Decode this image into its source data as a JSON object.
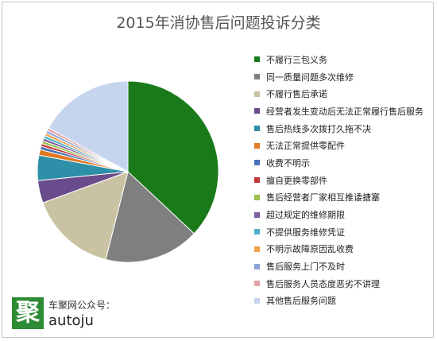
{
  "chart_data": {
    "type": "pie",
    "title": "2015年消协售后问题投诉分类",
    "slices": [
      {
        "label": "不履行三包义务",
        "value": 37.0,
        "color": "#1a7a1a"
      },
      {
        "label": "同一质量问题多次维修",
        "value": 17.0,
        "color": "#7f7f7f"
      },
      {
        "label": "不履行售后承诺",
        "value": 15.5,
        "color": "#c9c3a3"
      },
      {
        "label": "经营者发生变动后无法正常履行售后服务",
        "value": 4.0,
        "color": "#6a4c8c"
      },
      {
        "label": "售后热线多次拨打久拖不决",
        "value": 4.5,
        "color": "#2e8fa8"
      },
      {
        "label": "无法正常提供零配件",
        "value": 1.0,
        "color": "#e07b24"
      },
      {
        "label": "收费不明示",
        "value": 0.6,
        "color": "#4a72b8"
      },
      {
        "label": "擅自更换零部件",
        "value": 0.5,
        "color": "#c0393b"
      },
      {
        "label": "售后经营者厂家相互推诿搪塞",
        "value": 0.5,
        "color": "#9bbf4a"
      },
      {
        "label": "超过规定的维修期限",
        "value": 0.5,
        "color": "#7c5fa0"
      },
      {
        "label": "不提供服务维修凭证",
        "value": 0.5,
        "color": "#4fb0c8"
      },
      {
        "label": "不明示故障原因乱收费",
        "value": 0.5,
        "color": "#f2a04a"
      },
      {
        "label": "售后服务上门不及时",
        "value": 0.5,
        "color": "#8aa6d8"
      },
      {
        "label": "售后服务人员态度恶劣不讲理",
        "value": 0.5,
        "color": "#e3a3a5"
      },
      {
        "label": "其他售后服务问题",
        "value": 17.0,
        "color": "#c5d5ee"
      }
    ]
  },
  "watermark": {
    "logo_char": "聚",
    "line1": "车聚网公众号：",
    "line2": "autoju"
  }
}
